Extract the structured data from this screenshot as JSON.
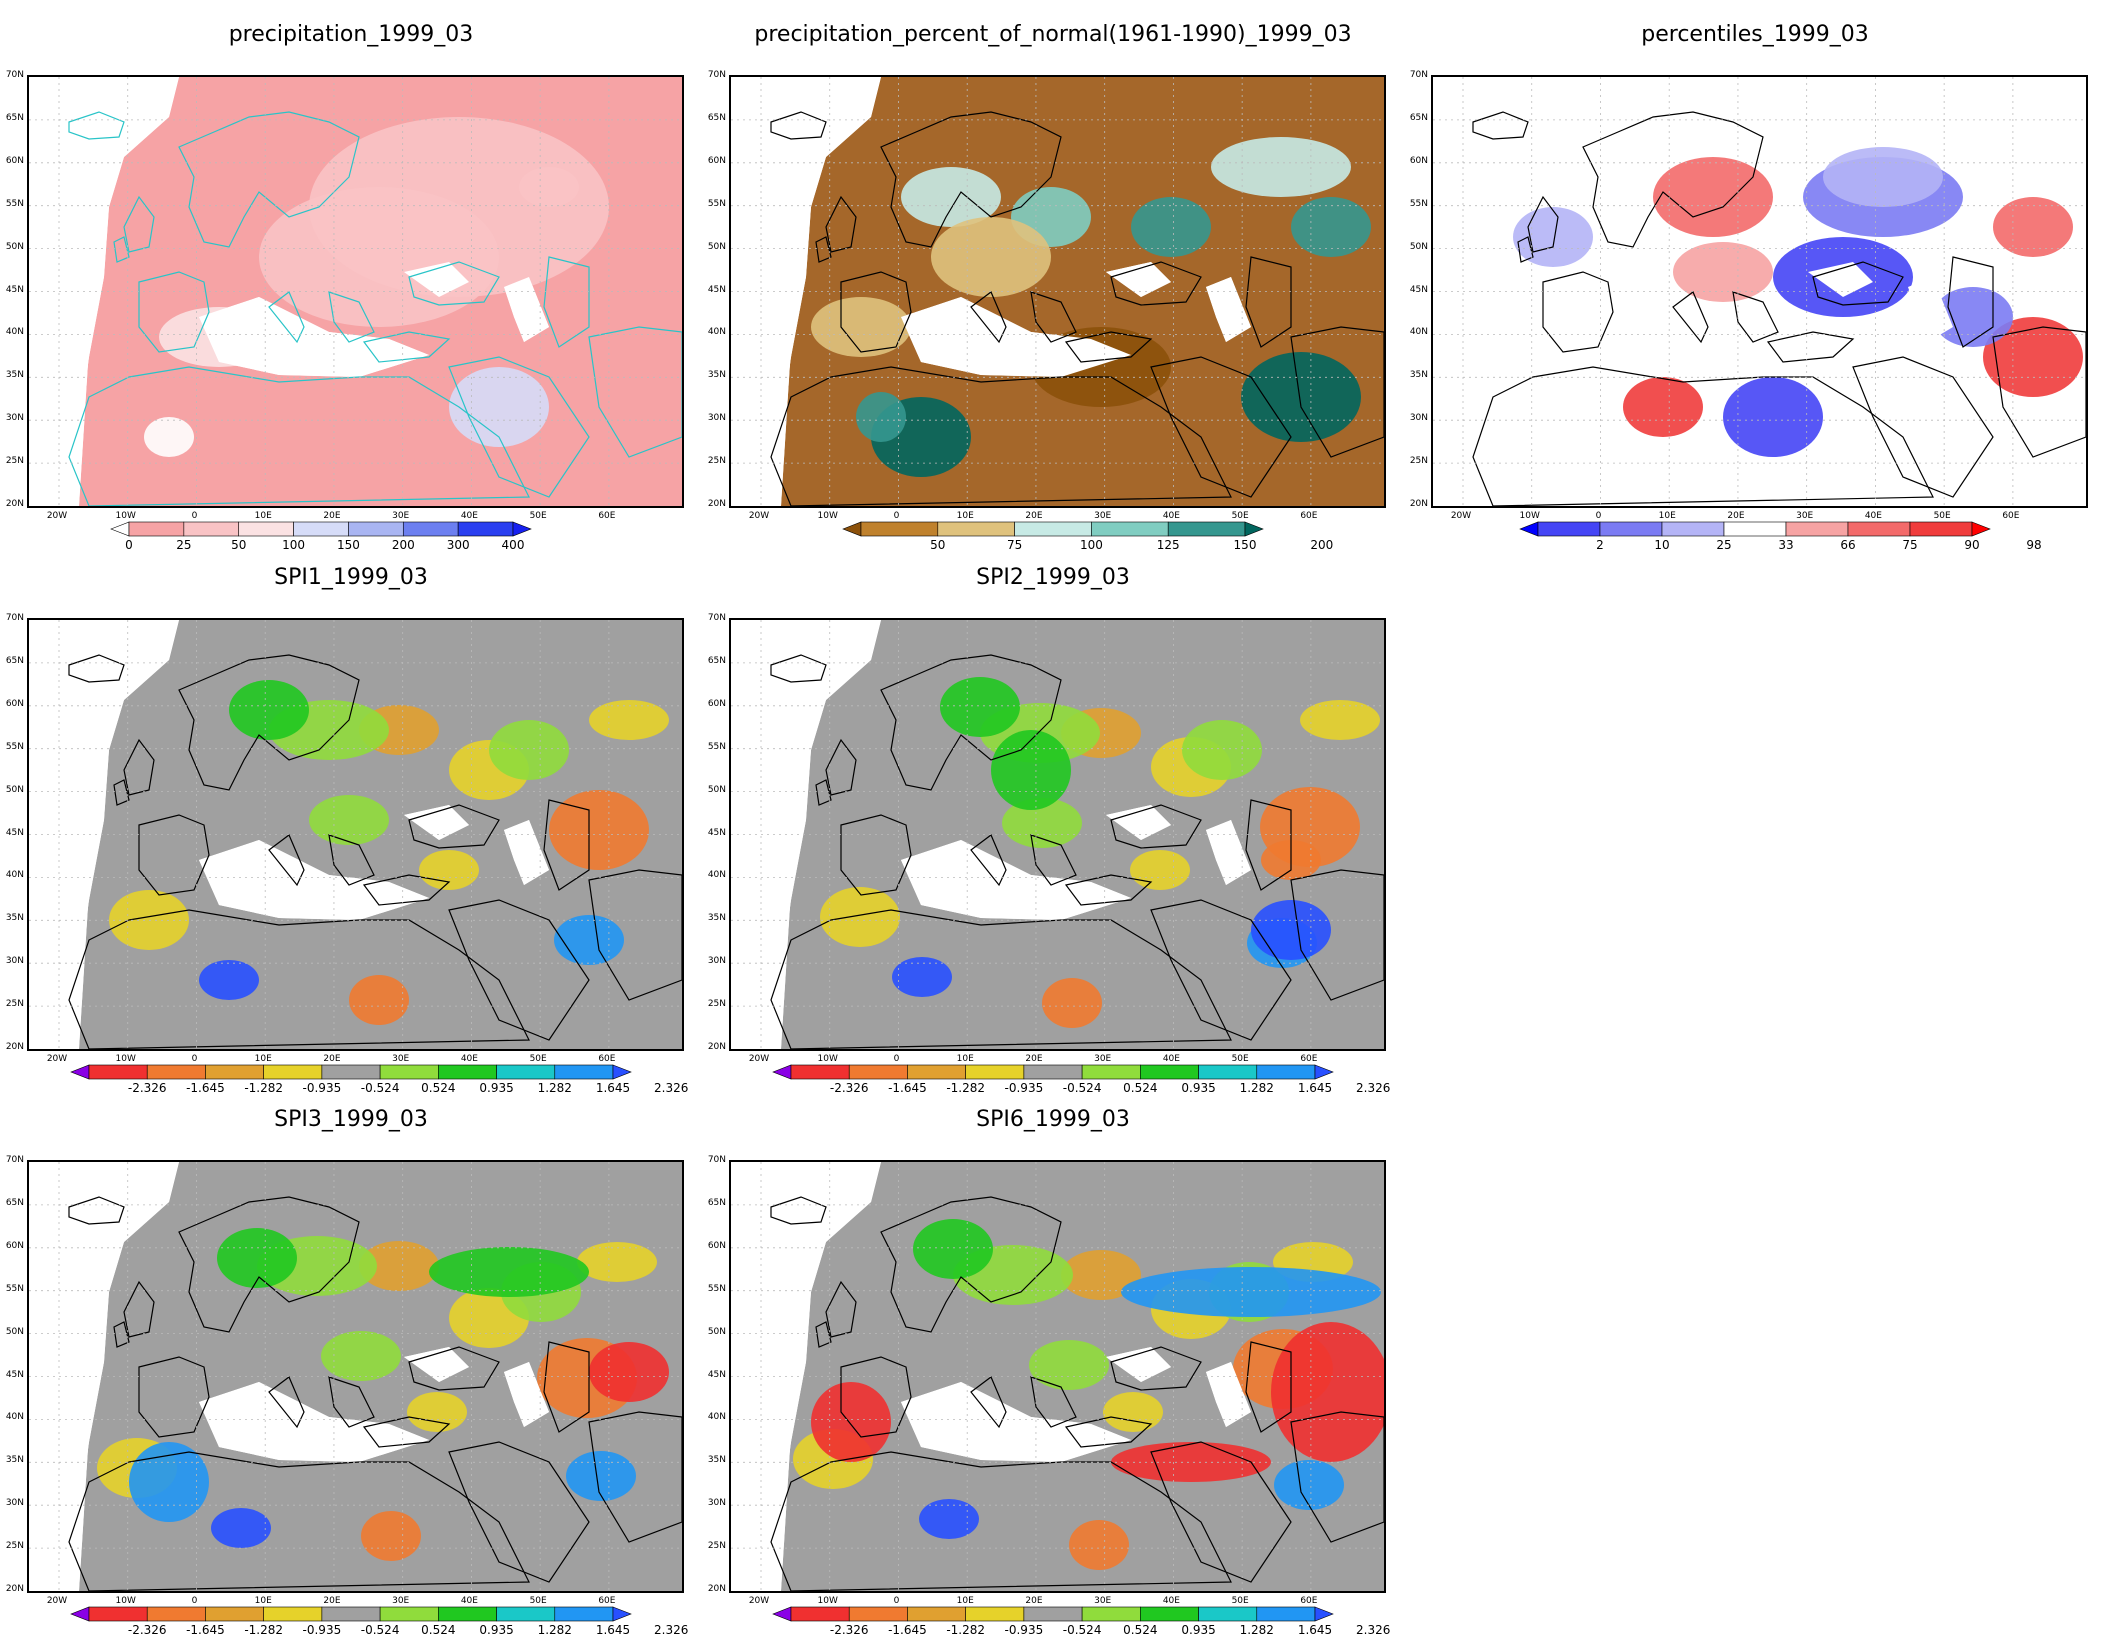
{
  "panels": [
    {
      "id": "precipitation",
      "title": "precipitation_1999_03",
      "scheme": "precip",
      "colorbar": {
        "labels": [
          "0",
          "25",
          "50",
          "100",
          "150",
          "200",
          "300",
          "400"
        ],
        "colors": [
          "#ffffff",
          "#f6a3a5",
          "#f9c3c5",
          "#fbe2e3",
          "#d6dcf8",
          "#a9b5f2",
          "#6c7ff0",
          "#2a3ff0",
          "#1620f0"
        ]
      }
    },
    {
      "id": "percent_of_normal",
      "title": "precipitation_percent_of_normal(1961-1990)_1999_03",
      "scheme": "pct",
      "colorbar": {
        "labels": [
          "50",
          "75",
          "100",
          "125",
          "150",
          "200"
        ],
        "colors": [
          "#8c510a",
          "#bf812d",
          "#dfc27d",
          "#c7eae5",
          "#80cdc1",
          "#35978f",
          "#01665e"
        ]
      }
    },
    {
      "id": "percentiles",
      "title": "percentiles_1999_03",
      "scheme": "perc",
      "colorbar": {
        "labels": [
          "2",
          "10",
          "25",
          "33",
          "66",
          "75",
          "90",
          "98"
        ],
        "colors": [
          "#0000ff",
          "#4545f5",
          "#7b7bf3",
          "#b4b4f6",
          "#ffffff",
          "#f6a3a3",
          "#f36a6a",
          "#f03c3c",
          "#ff0000"
        ]
      }
    },
    {
      "id": "spi1",
      "title": "SPI1_1999_03",
      "scheme": "spi",
      "colorbar": {
        "labels": [
          "-2.326",
          "-1.645",
          "-1.282",
          "-0.935",
          "-0.524",
          "0.524",
          "0.935",
          "1.282",
          "1.645",
          "2.326"
        ],
        "colors": [
          "#8a00e6",
          "#f03030",
          "#f07a30",
          "#e0a030",
          "#e6d22a",
          "#a0a0a0",
          "#90dc3c",
          "#20c820",
          "#1ac8c8",
          "#2196f3",
          "#2850ff"
        ]
      }
    },
    {
      "id": "spi2",
      "title": "SPI2_1999_03",
      "scheme": "spi",
      "colorbar": {
        "labels": [
          "-2.326",
          "-1.645",
          "-1.282",
          "-0.935",
          "-0.524",
          "0.524",
          "0.935",
          "1.282",
          "1.645",
          "2.326"
        ],
        "colors": [
          "#8a00e6",
          "#f03030",
          "#f07a30",
          "#e0a030",
          "#e6d22a",
          "#a0a0a0",
          "#90dc3c",
          "#20c820",
          "#1ac8c8",
          "#2196f3",
          "#2850ff"
        ]
      }
    },
    {
      "id": "spi3",
      "title": "SPI3_1999_03",
      "scheme": "spi",
      "colorbar": {
        "labels": [
          "-2.326",
          "-1.645",
          "-1.282",
          "-0.935",
          "-0.524",
          "0.524",
          "0.935",
          "1.282",
          "1.645",
          "2.326"
        ],
        "colors": [
          "#8a00e6",
          "#f03030",
          "#f07a30",
          "#e0a030",
          "#e6d22a",
          "#a0a0a0",
          "#90dc3c",
          "#20c820",
          "#1ac8c8",
          "#2196f3",
          "#2850ff"
        ]
      }
    },
    {
      "id": "spi6",
      "title": "SPI6_1999_03",
      "scheme": "spi",
      "colorbar": {
        "labels": [
          "-2.326",
          "-1.645",
          "-1.282",
          "-0.935",
          "-0.524",
          "0.524",
          "0.935",
          "1.282",
          "1.645",
          "2.326"
        ],
        "colors": [
          "#8a00e6",
          "#f03030",
          "#f07a30",
          "#e0a030",
          "#e6d22a",
          "#a0a0a0",
          "#90dc3c",
          "#20c820",
          "#1ac8c8",
          "#2196f3",
          "#2850ff"
        ]
      }
    }
  ],
  "axes": {
    "lat_labels": [
      "70N",
      "65N",
      "60N",
      "55N",
      "50N",
      "45N",
      "40N",
      "35N",
      "30N",
      "25N",
      "20N"
    ],
    "lon_labels": [
      "20W",
      "10W",
      "0",
      "10E",
      "20E",
      "30E",
      "40E",
      "50E",
      "60E"
    ]
  }
}
